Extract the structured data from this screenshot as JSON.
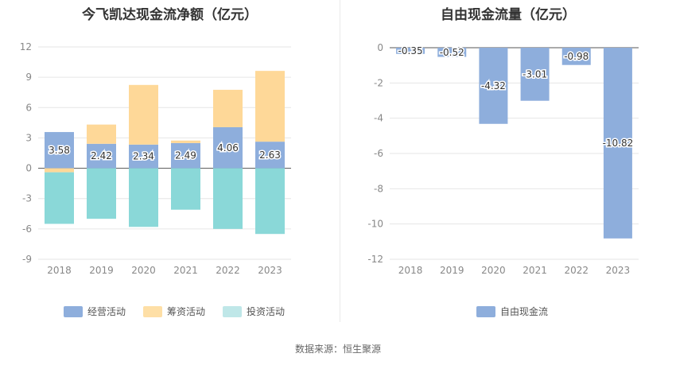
{
  "left_chart": {
    "title": "今飞凯达现金流净额（亿元）",
    "legend": [
      {
        "label": "经营活动",
        "color": "#8eaedc"
      },
      {
        "label": "筹资活动",
        "color": "#fedfa6"
      },
      {
        "label": "投资活动",
        "color": "#bfe7e8"
      }
    ]
  },
  "right_chart": {
    "title": "自由现金流量（亿元）",
    "legend": [
      {
        "label": "自由现金流",
        "color": "#8eaedc"
      }
    ]
  },
  "source": "数据来源：恒生聚源",
  "chart_data": [
    {
      "type": "bar",
      "stacked": true,
      "title": "今飞凯达现金流净额（亿元）",
      "categories": [
        "2018",
        "2019",
        "2020",
        "2021",
        "2022",
        "2023"
      ],
      "series": [
        {
          "name": "经营活动",
          "color": "#8eaedc",
          "values": [
            3.58,
            2.42,
            2.34,
            2.49,
            4.06,
            2.63
          ],
          "labels": [
            "3.58",
            "2.42",
            "2.34",
            "2.49",
            "4.06",
            "2.63"
          ]
        },
        {
          "name": "筹资活动",
          "color": "#fed898",
          "values": [
            -0.4,
            1.9,
            5.9,
            0.25,
            3.7,
            7.0
          ]
        },
        {
          "name": "投资活动",
          "color": "#8ad8d8",
          "values": [
            -5.1,
            -5.0,
            -5.8,
            -4.1,
            -6.0,
            -6.5
          ]
        }
      ],
      "yticks": [
        12,
        9,
        6,
        3,
        0,
        -3,
        -6,
        -9
      ],
      "ylim": [
        -9,
        12
      ],
      "grid": true,
      "legend_position": "bottom"
    },
    {
      "type": "bar",
      "title": "自由现金流量（亿元）",
      "categories": [
        "2018",
        "2019",
        "2020",
        "2021",
        "2022",
        "2023"
      ],
      "series": [
        {
          "name": "自由现金流",
          "color": "#8eaedc",
          "values": [
            -0.35,
            -0.52,
            -4.32,
            -3.01,
            -0.98,
            -10.82
          ],
          "labels": [
            "-0.35",
            "-0.52",
            "-4.32",
            "-3.01",
            "-0.98",
            "-10.82"
          ]
        }
      ],
      "yticks": [
        0,
        -2,
        -4,
        -6,
        -8,
        -10,
        -12
      ],
      "ylim": [
        -12,
        0
      ],
      "grid": true,
      "legend_position": "bottom"
    }
  ]
}
